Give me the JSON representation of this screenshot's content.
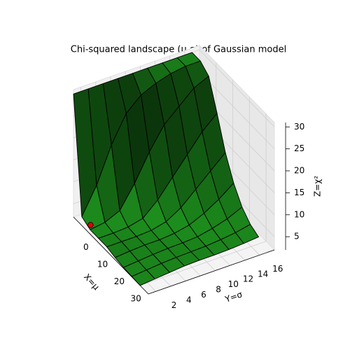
{
  "chart_data": {
    "type": "surface3d",
    "title": "Chi-squared landscape (μ,σ) of Gaussian model",
    "xlabel": "X=μ",
    "ylabel": "Y=σ",
    "zlabel": "Z=χ²",
    "x": [
      -10,
      -5,
      0,
      5,
      10,
      15,
      20,
      25,
      30
    ],
    "y": [
      1,
      3,
      5,
      7,
      9,
      11,
      13,
      15,
      17
    ],
    "z": [
      [
        30,
        4,
        3,
        3,
        3,
        2.5,
        2.2,
        2.1,
        2.0
      ],
      [
        30,
        10,
        3.5,
        3,
        3,
        2.8,
        2.5,
        2.4,
        2.3
      ],
      [
        30,
        18,
        5,
        3.2,
        3,
        3,
        2.8,
        2.7,
        2.6
      ],
      [
        30,
        24,
        10,
        4,
        3.2,
        3,
        3,
        2.9,
        2.9
      ],
      [
        30,
        27,
        16,
        7,
        4,
        3.3,
        3.1,
        3,
        3
      ],
      [
        30,
        28.5,
        21,
        11,
        6,
        4,
        3.3,
        3.1,
        3
      ],
      [
        30,
        29.5,
        24,
        15,
        9,
        5.5,
        4,
        3.4,
        3.1
      ],
      [
        30,
        30,
        27,
        19,
        12,
        7.5,
        5,
        3.8,
        3.3
      ],
      [
        30,
        30,
        28.5,
        22,
        15,
        10,
        6.5,
        4.5,
        3.6
      ]
    ],
    "xlim": [
      -10,
      35
    ],
    "ylim": [
      1,
      18
    ],
    "zlim": [
      2,
      31
    ],
    "xticks": [
      0,
      10,
      20,
      30
    ],
    "yticks": [
      2,
      4,
      6,
      8,
      10,
      12,
      14,
      16
    ],
    "zticks": [
      5,
      10,
      15,
      20,
      25,
      30
    ],
    "color": "#1f9a1f",
    "edgecolor": "#000000",
    "point": {
      "x": -2,
      "y": 1.5,
      "z": 3,
      "color": "#e00000"
    }
  }
}
